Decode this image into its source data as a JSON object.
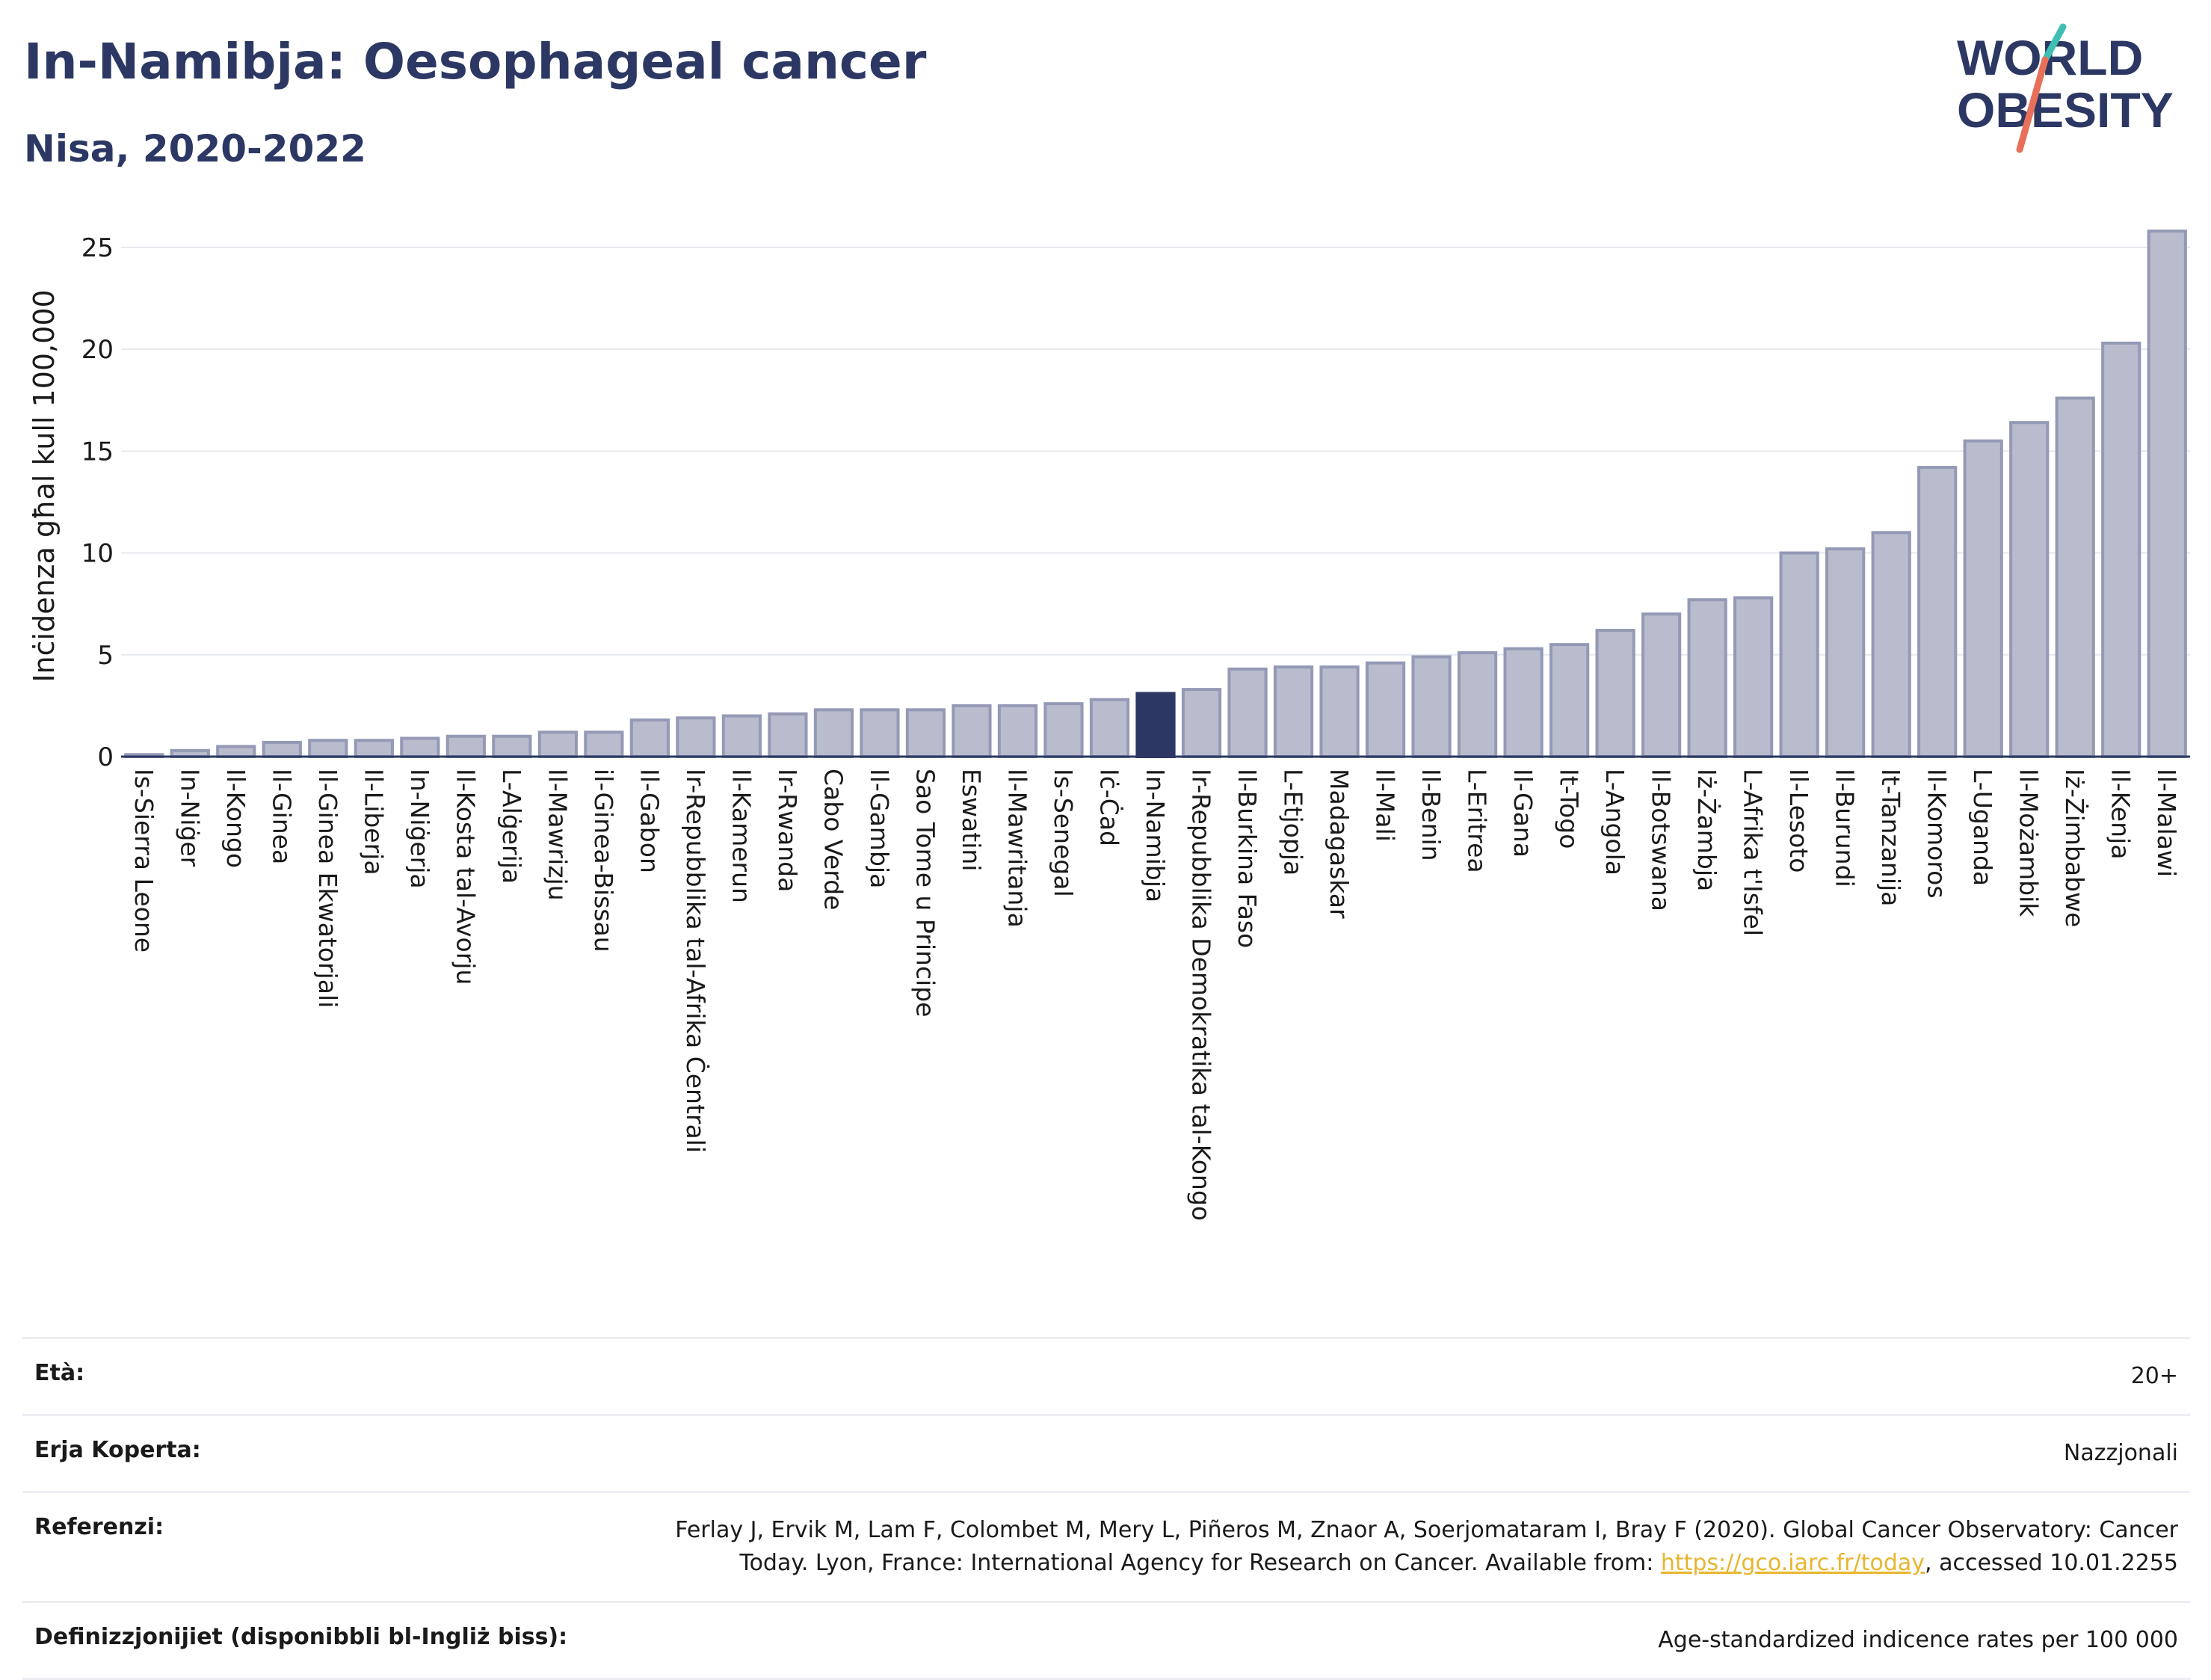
{
  "header": {
    "title": "In-Namibja: Oesophageal cancer",
    "subtitle": "Nisa, 2020-2022"
  },
  "logo": {
    "line1": "WORLD",
    "line2": "OBESITY",
    "colors": {
      "text": "#2c3863",
      "stroke_top": "#3fbfb3",
      "stroke_bottom": "#e8705a"
    }
  },
  "chart_data": {
    "type": "bar",
    "ylabel": "Inċidenza għal kull 100,000",
    "ylim": [
      0,
      26.5
    ],
    "yticks": [
      0,
      5,
      10,
      15,
      20,
      25
    ],
    "grid": true,
    "highlight": "In-Namibja",
    "colors": {
      "bar": "#b9bccd",
      "bar_border": "#9499b5",
      "highlight": "#2c3863"
    },
    "categories": [
      "Is-Sierra Leone",
      "In-Niġer",
      "Il-Kongo",
      "Il-Ginea",
      "Il-Ginea Ekwatorjali",
      "Il-Liberja",
      "In-Niġerja",
      "Il-Kosta tal-Avorju",
      "L-Alġerija",
      "Il-Mawrizju",
      "il-Ginea-Bissau",
      "Il-Gabon",
      "Ir-Repubblika tal-Afrika Ċentrali",
      "Il-Kamerun",
      "Ir-Rwanda",
      "Cabo Verde",
      "Il-Gambja",
      "Sao Tome u Principe",
      "Eswatini",
      "Il-Mawritanja",
      "Is-Senegal",
      "Iċ-Ċad",
      "In-Namibja",
      "Ir-Repubblika Demokratika tal-Kongo",
      "Il-Burkina Faso",
      "L-Etjopja",
      "Madagaskar",
      "Il-Mali",
      "Il-Benin",
      "L-Eritrea",
      "Il-Gana",
      "It-Togo",
      "L-Angola",
      "Il-Botswana",
      "Iż-Żambja",
      "L-Afrika t'Isfel",
      "Il-Lesoto",
      "Il-Burundi",
      "It-Tanzanija",
      "Il-Komoros",
      "L-Uganda",
      "Il-Możambik",
      "Iż-Żimbabwe",
      "Il-Kenja",
      "Il-Malawi"
    ],
    "values": [
      0.1,
      0.3,
      0.5,
      0.7,
      0.8,
      0.8,
      0.9,
      1.0,
      1.0,
      1.2,
      1.2,
      1.8,
      1.9,
      2.0,
      2.1,
      2.3,
      2.3,
      2.3,
      2.5,
      2.5,
      2.6,
      2.8,
      3.1,
      3.3,
      4.3,
      4.4,
      4.4,
      4.6,
      4.9,
      5.1,
      5.3,
      5.5,
      6.2,
      7.0,
      7.7,
      7.8,
      10.0,
      10.2,
      11.0,
      14.2,
      15.5,
      16.4,
      17.6,
      20.3,
      25.8
    ]
  },
  "meta": [
    {
      "label": "Età:",
      "value": "20+"
    },
    {
      "label": "Erja Koperta:",
      "value": "Nazzjonali"
    },
    {
      "label": "Referenzi:",
      "value_pre": "Ferlay J, Ervik M, Lam F, Colombet M, Mery L, Piñeros M, Znaor A, Soerjomataram I, Bray F (2020). Global Cancer Observatory: Cancer Today. Lyon, France: International Agency for Research on Cancer. Available from: ",
      "link": "https://gco.iarc.fr/today",
      "value_post": ", accessed 10.01.2255"
    },
    {
      "label": "Definizzjonijiet (disponibbli bl-Ingliż biss):",
      "value": "Age-standardized indicence rates per 100 000"
    }
  ]
}
